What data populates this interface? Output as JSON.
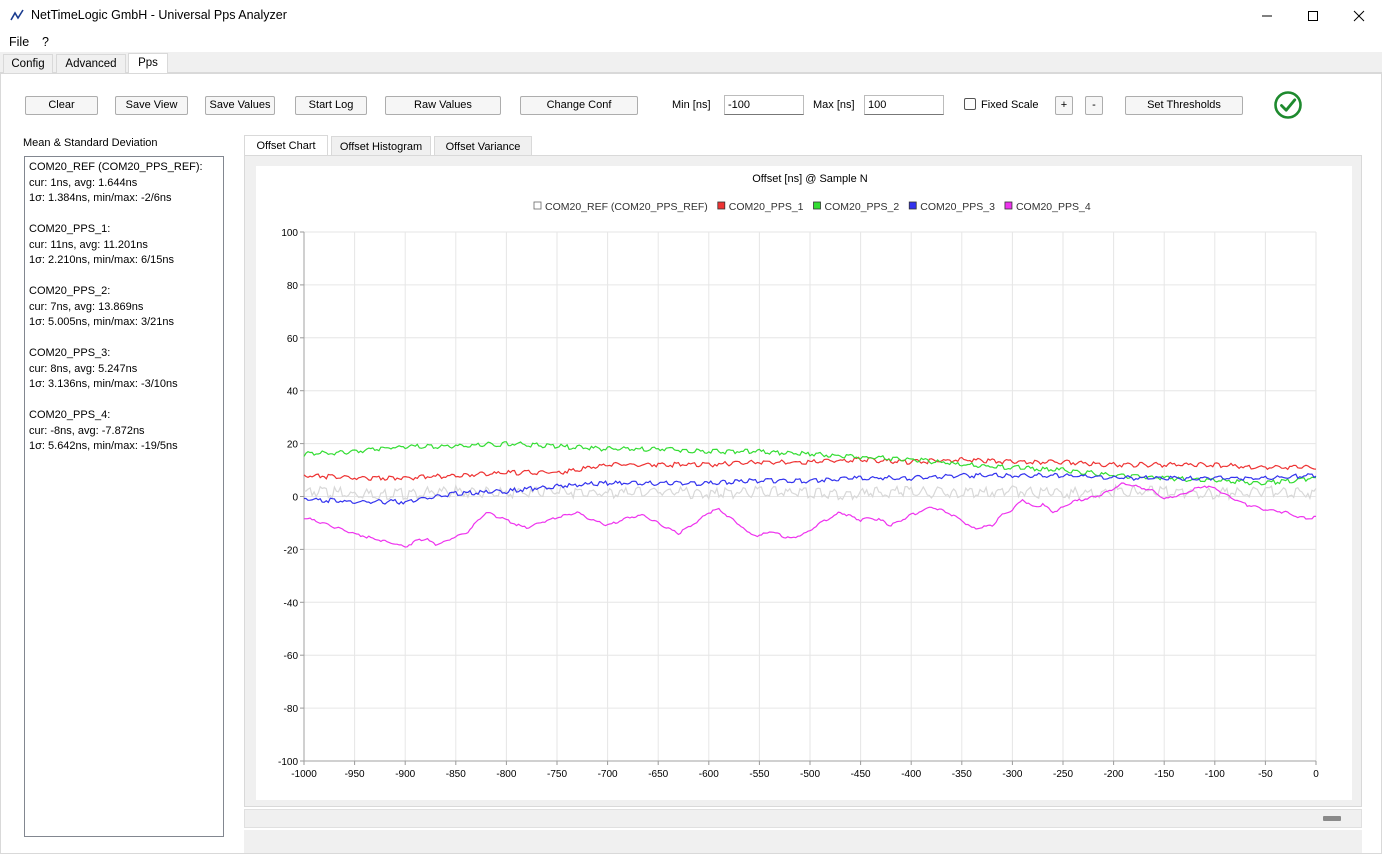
{
  "window": {
    "title": "NetTimeLogic GmbH - Universal Pps Analyzer"
  },
  "menu": {
    "items": [
      "File",
      "?"
    ]
  },
  "main_tabs": [
    {
      "label": "Config",
      "active": false
    },
    {
      "label": "Advanced",
      "active": false
    },
    {
      "label": "Pps",
      "active": true
    }
  ],
  "toolbar": {
    "clear": "Clear",
    "save_view": "Save View",
    "save_values": "Save Values",
    "start_log": "Start Log",
    "raw_values": "Raw Values",
    "change_conf": "Change Conf",
    "min_label": "Min [ns]",
    "min_value": "-100",
    "max_label": "Max [ns]",
    "max_value": "100",
    "fixed_scale": "Fixed Scale",
    "fixed_scale_checked": false,
    "plus": "+",
    "minus": "-",
    "set_thresholds": "Set Thresholds",
    "status_icon": "check-circle-icon",
    "status_color": "#1e8a2e"
  },
  "stats": {
    "title": "Mean & Standard Deviation",
    "blocks": [
      {
        "name": "COM20_REF (COM20_PPS_REF):",
        "cur": "cur: 1ns, avg: 1.644ns",
        "sigma": "1σ: 1.384ns, min/max: -2/6ns"
      },
      {
        "name": "COM20_PPS_1:",
        "cur": "cur: 11ns, avg: 11.201ns",
        "sigma": "1σ: 2.210ns, min/max: 6/15ns"
      },
      {
        "name": "COM20_PPS_2:",
        "cur": "cur: 7ns, avg: 13.869ns",
        "sigma": "1σ: 5.005ns, min/max: 3/21ns"
      },
      {
        "name": "COM20_PPS_3:",
        "cur": "cur: 8ns, avg: 5.247ns",
        "sigma": "1σ: 3.136ns, min/max: -3/10ns"
      },
      {
        "name": "COM20_PPS_4:",
        "cur": "cur: -8ns, avg: -7.872ns",
        "sigma": "1σ: 5.642ns, min/max: -19/5ns"
      }
    ]
  },
  "chart_tabs": [
    {
      "label": "Offset Chart",
      "active": true
    },
    {
      "label": "Offset Histogram",
      "active": false
    },
    {
      "label": "Offset Variance",
      "active": false
    }
  ],
  "chart_data": {
    "type": "line",
    "title": "Offset [ns] @ Sample N",
    "xlabel": "",
    "ylabel": "",
    "xlim": [
      -1000,
      0
    ],
    "ylim": [
      -100,
      100
    ],
    "xticks": [
      -1000,
      -950,
      -900,
      -850,
      -800,
      -750,
      -700,
      -650,
      -600,
      -550,
      -500,
      -450,
      -400,
      -350,
      -300,
      -250,
      -200,
      -150,
      -100,
      -50,
      0
    ],
    "yticks": [
      100,
      80,
      60,
      40,
      20,
      0,
      -20,
      -40,
      -60,
      -80,
      -100
    ],
    "grid": true,
    "legend_position": "top",
    "series": [
      {
        "name": "COM20_REF (COM20_PPS_REF)",
        "color": "#d8d8d8",
        "x": [
          -1000,
          -950,
          -900,
          -850,
          -800,
          -750,
          -700,
          -650,
          -600,
          -550,
          -500,
          -450,
          -400,
          -350,
          -300,
          -250,
          -200,
          -150,
          -100,
          -50,
          0
        ],
        "values": [
          2,
          1,
          1,
          2,
          1,
          2,
          1,
          2,
          1,
          2,
          1,
          1,
          2,
          1,
          2,
          1,
          2,
          2,
          1,
          2,
          1
        ]
      },
      {
        "name": "COM20_PPS_1",
        "color": "#ee3333",
        "x": [
          -1000,
          -950,
          -900,
          -850,
          -800,
          -750,
          -700,
          -650,
          -600,
          -550,
          -500,
          -450,
          -400,
          -350,
          -300,
          -250,
          -200,
          -150,
          -100,
          -50,
          0
        ],
        "values": [
          8,
          7,
          7,
          8,
          9,
          9,
          12,
          12,
          12,
          13,
          13,
          14,
          13,
          14,
          13,
          13,
          12,
          12,
          12,
          11,
          11
        ]
      },
      {
        "name": "COM20_PPS_2",
        "color": "#33dd33",
        "x": [
          -1000,
          -950,
          -900,
          -850,
          -800,
          -750,
          -700,
          -650,
          -600,
          -550,
          -500,
          -450,
          -400,
          -350,
          -300,
          -250,
          -200,
          -150,
          -100,
          -50,
          0
        ],
        "values": [
          16,
          17,
          19,
          19,
          20,
          19,
          18,
          18,
          17,
          17,
          16,
          15,
          14,
          12,
          11,
          10,
          8,
          7,
          6,
          5,
          7
        ]
      },
      {
        "name": "COM20_PPS_3",
        "color": "#3333ee",
        "x": [
          -1000,
          -950,
          -900,
          -850,
          -800,
          -750,
          -700,
          -650,
          -600,
          -550,
          -500,
          -450,
          -400,
          -350,
          -300,
          -250,
          -200,
          -150,
          -100,
          -50,
          0
        ],
        "values": [
          -1,
          -2,
          -2,
          1,
          2,
          4,
          5,
          5,
          5,
          6,
          6,
          7,
          7,
          8,
          8,
          8,
          7,
          7,
          7,
          7,
          8
        ]
      },
      {
        "name": "COM20_PPS_4",
        "color": "#ee33ee",
        "x": [
          -1000,
          -990,
          -975,
          -950,
          -930,
          -920,
          -910,
          -900,
          -890,
          -880,
          -870,
          -860,
          -850,
          -840,
          -830,
          -820,
          -800,
          -780,
          -760,
          -750,
          -740,
          -730,
          -720,
          -700,
          -680,
          -665,
          -650,
          -630,
          -610,
          -600,
          -590,
          -575,
          -560,
          -550,
          -540,
          -520,
          -505,
          -490,
          -470,
          -450,
          -440,
          -430,
          -420,
          -400,
          -380,
          -370,
          -350,
          -340,
          -320,
          -310,
          -300,
          -290,
          -280,
          -270,
          -260,
          -250,
          -240,
          -230,
          -220,
          -210,
          -200,
          -190,
          -180,
          -170,
          -160,
          -150,
          -140,
          -130,
          -120,
          -110,
          -100,
          -90,
          -80,
          -70,
          -50,
          -30,
          -15,
          0
        ],
        "values": [
          -8,
          -9,
          -11,
          -14,
          -16,
          -17,
          -18,
          -19,
          -17,
          -16,
          -18,
          -17,
          -15,
          -14,
          -10,
          -6,
          -9,
          -12,
          -9,
          -8,
          -7,
          -6,
          -8,
          -11,
          -8,
          -7,
          -10,
          -14,
          -9,
          -6,
          -5,
          -9,
          -14,
          -15,
          -13,
          -16,
          -14,
          -10,
          -6,
          -9,
          -8,
          -9,
          -11,
          -7,
          -4,
          -5,
          -9,
          -12,
          -11,
          -7,
          -5,
          -1,
          -4,
          -3,
          -6,
          -4,
          -2,
          -1,
          0,
          1,
          3,
          5,
          4,
          3,
          2,
          -1,
          0,
          1,
          3,
          4,
          3,
          1,
          -1,
          -3,
          -5,
          -6,
          -8,
          -8
        ]
      }
    ]
  }
}
